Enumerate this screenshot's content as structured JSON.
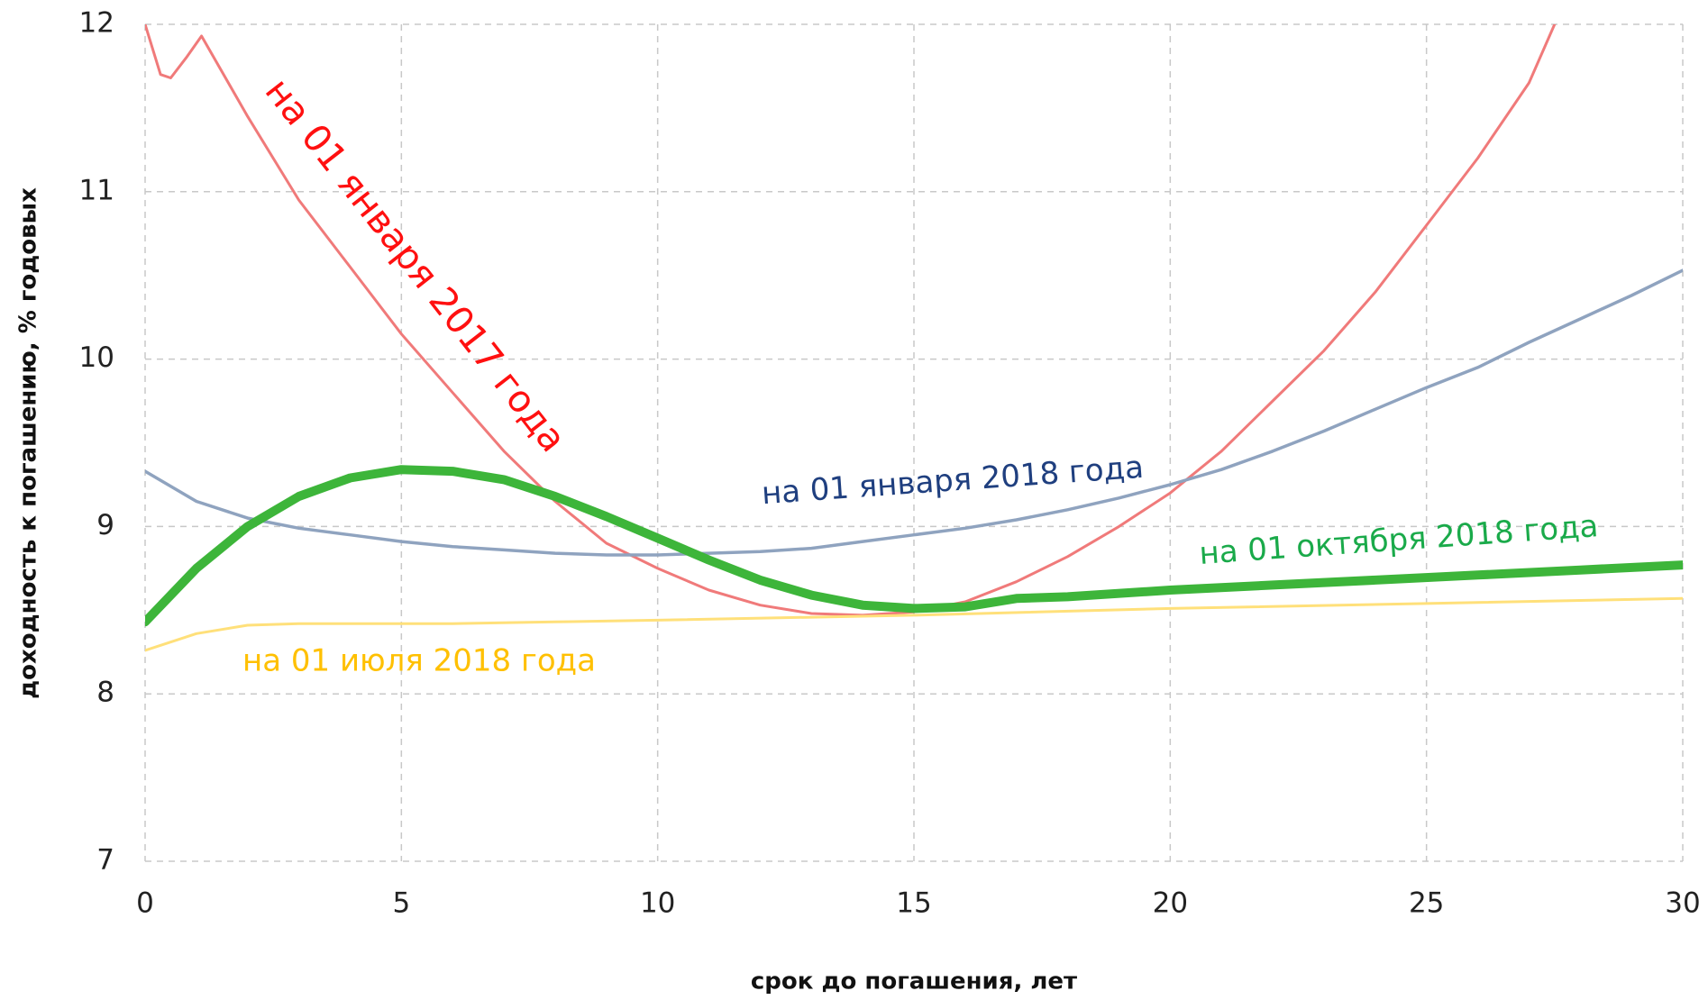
{
  "chart_data": {
    "type": "line",
    "xlabel": "срок до погашения, лет",
    "ylabel": "доходность к погашению, % годовых",
    "xlim": [
      0,
      30
    ],
    "ylim": [
      7,
      12
    ],
    "xticks": [
      0,
      5,
      10,
      15,
      20,
      25,
      30
    ],
    "yticks": [
      7,
      8,
      9,
      10,
      11,
      12
    ],
    "grid": true,
    "series": [
      {
        "name": "на 01 января 2017 года",
        "color": "#f07a7a",
        "x": [
          0,
          0.3,
          0.5,
          0.8,
          1.1,
          2,
          3,
          4,
          5,
          6,
          7,
          8,
          9,
          10,
          11,
          12,
          13,
          14,
          15,
          16,
          17,
          18,
          19,
          20,
          21,
          22,
          23,
          24,
          25,
          26,
          27,
          27.5
        ],
        "values": [
          12.0,
          11.7,
          11.68,
          11.8,
          11.93,
          11.45,
          10.95,
          10.55,
          10.15,
          9.8,
          9.45,
          9.15,
          8.9,
          8.75,
          8.62,
          8.53,
          8.48,
          8.47,
          8.49,
          8.55,
          8.67,
          8.82,
          9.0,
          9.2,
          9.45,
          9.75,
          10.05,
          10.4,
          10.8,
          11.2,
          11.65,
          12.0
        ]
      },
      {
        "name": "на 01 января 2018 года",
        "color": "#8fa3bf",
        "x": [
          0,
          1,
          2,
          3,
          4,
          5,
          6,
          7,
          8,
          9,
          10,
          11,
          12,
          13,
          14,
          15,
          16,
          17,
          18,
          19,
          20,
          21,
          22,
          23,
          24,
          25,
          26,
          27,
          28,
          29,
          30
        ],
        "values": [
          9.33,
          9.15,
          9.05,
          8.99,
          8.95,
          8.91,
          8.88,
          8.86,
          8.84,
          8.83,
          8.83,
          8.84,
          8.85,
          8.87,
          8.91,
          8.95,
          8.99,
          9.04,
          9.1,
          9.17,
          9.25,
          9.34,
          9.45,
          9.57,
          9.7,
          9.83,
          9.95,
          10.1,
          10.24,
          10.38,
          10.53
        ]
      },
      {
        "name": "на 01 июля 2018 года",
        "color": "#ffe07a",
        "x": [
          0,
          1,
          2,
          3,
          4,
          5,
          6,
          8,
          10,
          15,
          20,
          25,
          30
        ],
        "values": [
          8.26,
          8.36,
          8.41,
          8.42,
          8.42,
          8.42,
          8.42,
          8.43,
          8.44,
          8.47,
          8.51,
          8.54,
          8.57
        ]
      },
      {
        "name": "на 01 октября 2018 года",
        "color": "#3db53a",
        "x": [
          0,
          1,
          2,
          3,
          4,
          5,
          6,
          7,
          8,
          9,
          10,
          11,
          12,
          13,
          14,
          15,
          16,
          17,
          18,
          20,
          22,
          24,
          26,
          28,
          30
        ],
        "values": [
          8.43,
          8.75,
          9.0,
          9.18,
          9.29,
          9.34,
          9.33,
          9.28,
          9.18,
          9.06,
          8.93,
          8.8,
          8.68,
          8.59,
          8.53,
          8.51,
          8.52,
          8.57,
          8.58,
          8.62,
          8.65,
          8.68,
          8.71,
          8.74,
          8.77
        ]
      }
    ],
    "label_colors": [
      "#ff1010",
      "#1f3f7f",
      "#ffc000",
      "#1aaa4a"
    ]
  }
}
